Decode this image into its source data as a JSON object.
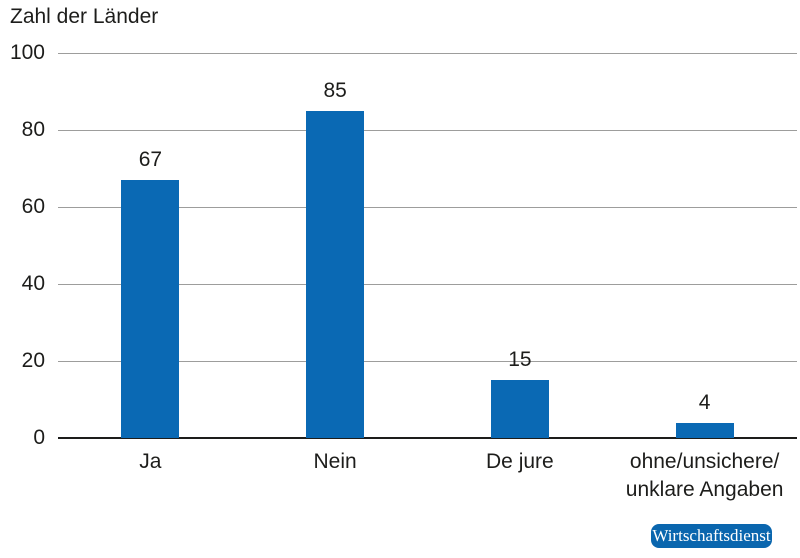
{
  "chart_data": {
    "type": "bar",
    "title": "Zahl der Länder",
    "categories": [
      "Ja",
      "Nein",
      "De jure",
      "ohne/unsichere/\nunklare Angaben"
    ],
    "values": [
      67,
      85,
      15,
      4
    ],
    "value_labels_shown": true,
    "xlabel": "",
    "ylabel": "Zahl der Länder",
    "ylim": [
      0,
      100
    ],
    "yticks": [
      0,
      20,
      40,
      60,
      80,
      100
    ],
    "grid": true,
    "legend_position": "none",
    "bar_color": "#0a69b4"
  },
  "branding": {
    "label": "Wirtschaftsdienst",
    "badge_color": "#0a66ae",
    "label_color": "#ffffff"
  },
  "colors": {
    "background": "#ffffff",
    "text": "#1d1d1b",
    "gridline": "#9d9d9c",
    "axis": "#1d1d1b"
  }
}
